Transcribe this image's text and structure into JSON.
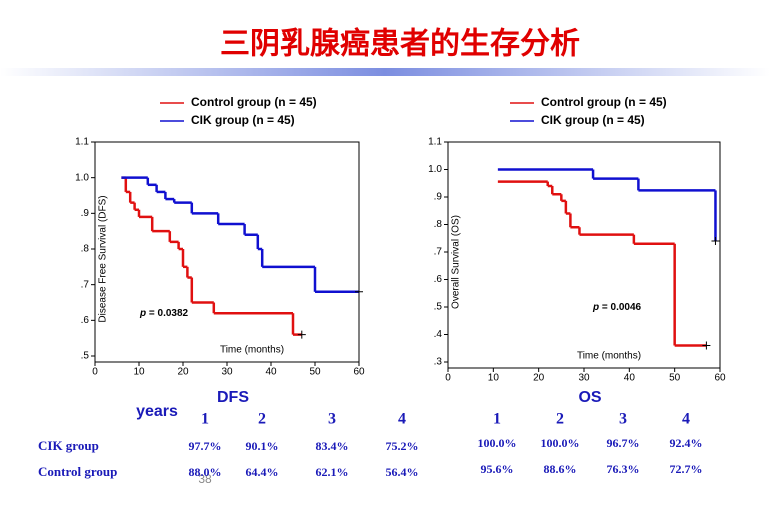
{
  "title": "三阴乳腺癌患者的生存分析",
  "page_number": "38",
  "chart_data": [
    {
      "type": "line",
      "step": "post",
      "ylabel": "Disease Free Survival (DFS)",
      "xlabel": "Time (months)",
      "annotation": {
        "prefix": "p",
        "text": "= 0.0382"
      },
      "xlim": [
        0,
        60
      ],
      "xticks": [
        0,
        10,
        20,
        30,
        40,
        50,
        60
      ],
      "ylim": [
        0.5,
        1.1
      ],
      "yticks": [
        {
          "value": 0.5,
          "label": ".5"
        },
        {
          "value": 0.6,
          "label": ".6"
        },
        {
          "value": 0.7,
          "label": ".7"
        },
        {
          "value": 0.8,
          "label": ".8"
        },
        {
          "value": 0.9,
          "label": ".9"
        },
        {
          "value": 1,
          "label": "1.0"
        },
        1.1
      ],
      "series": [
        {
          "name": "Control group (n = 45)",
          "color": "#e01010",
          "x": [
            6,
            7,
            8,
            9,
            10,
            13,
            17,
            19,
            20,
            21,
            22,
            27,
            45,
            47
          ],
          "values": [
            1.0,
            0.96,
            0.93,
            0.91,
            0.89,
            0.85,
            0.82,
            0.8,
            0.75,
            0.72,
            0.65,
            0.62,
            0.56,
            0.56
          ]
        },
        {
          "name": "CIK group (n = 45)",
          "color": "#1010d0",
          "x": [
            6,
            12,
            14,
            16,
            18,
            22,
            28,
            34,
            37,
            38,
            50,
            60
          ],
          "values": [
            1.0,
            0.98,
            0.96,
            0.94,
            0.93,
            0.9,
            0.87,
            0.84,
            0.8,
            0.75,
            0.68,
            0.68
          ]
        }
      ]
    },
    {
      "type": "line",
      "step": "post",
      "ylabel": "Overall Survival (OS)",
      "xlabel": "Time (months)",
      "annotation": {
        "prefix": "p",
        "text": "= 0.0046"
      },
      "xlim": [
        0,
        60
      ],
      "xticks": [
        0,
        10,
        20,
        30,
        40,
        50,
        60
      ],
      "ylim": [
        0.3,
        1.1
      ],
      "yticks": [
        {
          "value": 0.3,
          "label": ".3"
        },
        {
          "value": 0.4,
          "label": ".4"
        },
        {
          "value": 0.5,
          "label": ".5"
        },
        {
          "value": 0.6,
          "label": ".6"
        },
        {
          "value": 0.7,
          "label": ".7"
        },
        {
          "value": 0.8,
          "label": ".8"
        },
        {
          "value": 0.9,
          "label": ".9"
        },
        {
          "value": 1,
          "label": "1.0"
        },
        1.1
      ],
      "series": [
        {
          "name": "Control group (n = 45)",
          "color": "#e01010",
          "x": [
            11,
            22,
            23,
            25,
            26,
            27,
            29,
            41,
            50,
            57
          ],
          "values": [
            0.956,
            0.94,
            0.91,
            0.886,
            0.84,
            0.79,
            0.763,
            0.73,
            0.36,
            0.36
          ]
        },
        {
          "name": "CIK group (n = 45)",
          "color": "#1010d0",
          "x": [
            11,
            32,
            42,
            59
          ],
          "values": [
            1.0,
            0.967,
            0.924,
            0.74
          ]
        }
      ]
    }
  ],
  "table": {
    "row_header": "years",
    "groups": [
      "DFS",
      "OS"
    ],
    "columns": [
      [
        "1",
        "2",
        "3",
        "4"
      ],
      [
        "1",
        "2",
        "3",
        "4"
      ]
    ],
    "rows": [
      {
        "label": "CIK group",
        "cells": [
          [
            "97.7%",
            "90.1%",
            "83.4%",
            "75.2%"
          ],
          [
            "100.0%",
            "100.0%",
            "96.7%",
            "92.4%"
          ]
        ]
      },
      {
        "label": "Control group",
        "cells": [
          [
            "88.0%",
            "64.4%",
            "62.1%",
            "56.4%"
          ],
          [
            "95.6%",
            "88.6%",
            "76.3%",
            "72.7%"
          ]
        ]
      }
    ]
  }
}
